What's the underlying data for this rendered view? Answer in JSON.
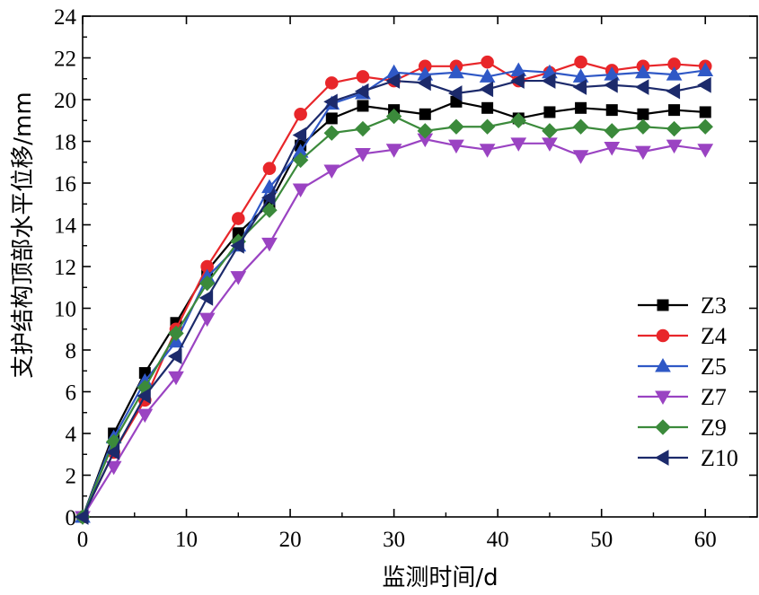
{
  "chart_data": {
    "type": "line",
    "xlabel": "监测时间/d",
    "ylabel": "支护结构顶部水平位移/mm",
    "xlim": [
      0,
      65
    ],
    "ylim": [
      0,
      24
    ],
    "xticks": [
      0,
      10,
      20,
      30,
      40,
      50,
      60
    ],
    "yticks": [
      0,
      2,
      4,
      6,
      8,
      10,
      12,
      14,
      16,
      18,
      20,
      22,
      24
    ],
    "grid": false,
    "legend_position": "right",
    "x": [
      0,
      3,
      6,
      9,
      12,
      15,
      18,
      21,
      24,
      27,
      30,
      33,
      36,
      39,
      42,
      45,
      48,
      51,
      54,
      57,
      60
    ],
    "series": [
      {
        "name": "Z3",
        "color": "#000000",
        "marker": "square",
        "values": [
          0,
          4.0,
          6.9,
          9.3,
          11.8,
          13.6,
          15.0,
          17.8,
          19.1,
          19.7,
          19.5,
          19.3,
          19.9,
          19.6,
          19.1,
          19.4,
          19.6,
          19.5,
          19.3,
          19.5,
          19.4
        ]
      },
      {
        "name": "Z4",
        "color": "#e8262a",
        "marker": "circle",
        "values": [
          0,
          3.1,
          5.6,
          9.0,
          12.0,
          14.3,
          16.7,
          19.3,
          20.8,
          21.1,
          20.9,
          21.6,
          21.6,
          21.8,
          20.9,
          21.3,
          21.8,
          21.4,
          21.6,
          21.7,
          21.6
        ]
      },
      {
        "name": "Z5",
        "color": "#2f58c6",
        "marker": "triangle-up",
        "values": [
          0,
          3.8,
          6.5,
          8.4,
          11.5,
          13.0,
          15.8,
          17.5,
          19.8,
          20.3,
          21.3,
          21.2,
          21.3,
          21.1,
          21.4,
          21.3,
          21.1,
          21.2,
          21.3,
          21.2,
          21.4
        ]
      },
      {
        "name": "Z7",
        "color": "#9a43c2",
        "marker": "triangle-down",
        "values": [
          0,
          2.4,
          4.9,
          6.7,
          9.5,
          11.5,
          13.1,
          15.7,
          16.6,
          17.4,
          17.6,
          18.1,
          17.8,
          17.6,
          17.9,
          17.9,
          17.3,
          17.7,
          17.5,
          17.8,
          17.6
        ]
      },
      {
        "name": "Z9",
        "color": "#3b8a3b",
        "marker": "diamond",
        "values": [
          0,
          3.6,
          6.2,
          8.8,
          11.2,
          13.2,
          14.7,
          17.1,
          18.4,
          18.6,
          19.2,
          18.5,
          18.7,
          18.7,
          19.0,
          18.5,
          18.7,
          18.5,
          18.7,
          18.6,
          18.7
        ]
      },
      {
        "name": "Z10",
        "color": "#1c2a6b",
        "marker": "triangle-left",
        "values": [
          0,
          3.1,
          5.8,
          7.7,
          10.5,
          13.0,
          15.3,
          18.3,
          19.9,
          20.4,
          20.9,
          20.8,
          20.3,
          20.5,
          20.9,
          20.9,
          20.6,
          20.7,
          20.6,
          20.4,
          20.7
        ]
      }
    ]
  }
}
